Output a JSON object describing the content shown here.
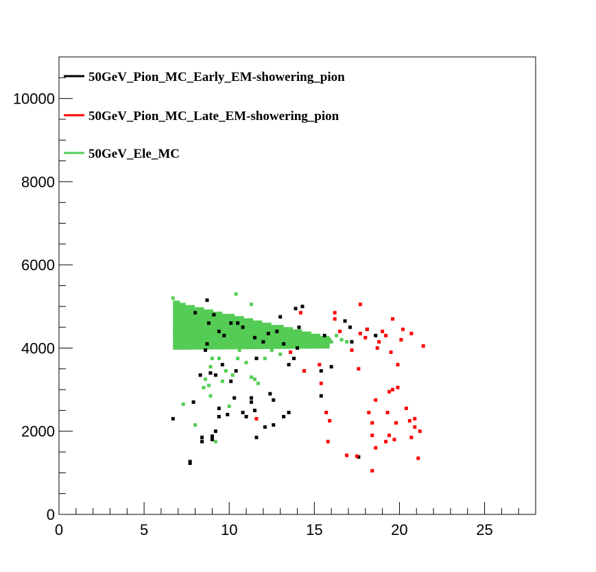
{
  "chart_data": {
    "type": "scatter",
    "title": "",
    "xlabel": "",
    "ylabel": "",
    "xlim": [
      0,
      28
    ],
    "ylim": [
      0,
      11000
    ],
    "x_ticks": [
      0,
      5,
      10,
      15,
      20,
      25
    ],
    "y_ticks": [
      0,
      2000,
      4000,
      6000,
      8000,
      10000
    ],
    "x_tick_labels": [
      "0",
      "5",
      "10",
      "15",
      "20",
      "25"
    ],
    "y_tick_labels": [
      "0",
      "2000",
      "4000",
      "6000",
      "8000",
      "10000"
    ],
    "grid": false,
    "legend_placement": "top-left",
    "series": [
      {
        "name": "50GeV_Pion_MC_Early_EM-showering_pion",
        "color": "#000000",
        "points": [
          [
            6.7,
            2300
          ],
          [
            7.7,
            1230
          ],
          [
            7.7,
            1270
          ],
          [
            7.9,
            2700
          ],
          [
            8.4,
            1850
          ],
          [
            8.4,
            1750
          ],
          [
            8.3,
            3350
          ],
          [
            8.6,
            3950
          ],
          [
            8.7,
            5150
          ],
          [
            8.9,
            3400
          ],
          [
            9.0,
            1800
          ],
          [
            9.0,
            1880
          ],
          [
            9.2,
            2000
          ],
          [
            9.4,
            2550
          ],
          [
            9.4,
            2350
          ],
          [
            9.2,
            3350
          ],
          [
            9.6,
            3600
          ],
          [
            9.9,
            2400
          ],
          [
            10.1,
            3200
          ],
          [
            10.4,
            3450
          ],
          [
            10.5,
            4600
          ],
          [
            10.1,
            4600
          ],
          [
            10.3,
            2800
          ],
          [
            10.8,
            2450
          ],
          [
            11.0,
            2350
          ],
          [
            11.3,
            2700
          ],
          [
            11.3,
            2800
          ],
          [
            11.6,
            1850
          ],
          [
            11.5,
            2500
          ],
          [
            11.6,
            3750
          ],
          [
            12.0,
            4150
          ],
          [
            12.1,
            2100
          ],
          [
            12.4,
            2900
          ],
          [
            12.6,
            2750
          ],
          [
            12.6,
            2150
          ],
          [
            12.8,
            4400
          ],
          [
            13.0,
            4750
          ],
          [
            13.2,
            2350
          ],
          [
            13.5,
            2450
          ],
          [
            13.5,
            3600
          ],
          [
            13.8,
            3750
          ],
          [
            13.9,
            4950
          ],
          [
            14.3,
            5000
          ],
          [
            14.1,
            4500
          ],
          [
            14.4,
            3450
          ],
          [
            15.4,
            3450
          ],
          [
            15.4,
            2850
          ],
          [
            15.6,
            4300
          ],
          [
            16.0,
            3550
          ],
          [
            16.8,
            4650
          ],
          [
            17.1,
            4500
          ],
          [
            17.2,
            4150
          ],
          [
            17.6,
            1380
          ],
          [
            18.1,
            4450
          ],
          [
            18.6,
            4300
          ],
          [
            8.0,
            4850
          ],
          [
            9.1,
            4800
          ],
          [
            9.4,
            4400
          ],
          [
            8.7,
            4100
          ],
          [
            13.2,
            4100
          ],
          [
            14.0,
            4000
          ],
          [
            8.8,
            4600
          ],
          [
            9.7,
            4300
          ],
          [
            10.8,
            4500
          ],
          [
            11.5,
            4250
          ],
          [
            12.3,
            4350
          ]
        ]
      },
      {
        "name": "50GeV_Pion_MC_Late_EM-showering_pion",
        "color": "#ff0000",
        "points": [
          [
            11.6,
            2300
          ],
          [
            13.6,
            3900
          ],
          [
            14.2,
            4850
          ],
          [
            14.4,
            3450
          ],
          [
            15.3,
            3600
          ],
          [
            15.4,
            3150
          ],
          [
            15.7,
            2450
          ],
          [
            15.8,
            1750
          ],
          [
            15.9,
            2250
          ],
          [
            16.2,
            4850
          ],
          [
            16.2,
            4700
          ],
          [
            16.5,
            4400
          ],
          [
            16.9,
            1420
          ],
          [
            17.2,
            3950
          ],
          [
            17.5,
            1400
          ],
          [
            17.6,
            3500
          ],
          [
            17.7,
            4350
          ],
          [
            17.7,
            5050
          ],
          [
            18.0,
            4250
          ],
          [
            18.1,
            4450
          ],
          [
            18.2,
            2450
          ],
          [
            18.4,
            2200
          ],
          [
            18.4,
            1900
          ],
          [
            18.4,
            1050
          ],
          [
            18.6,
            2750
          ],
          [
            18.6,
            1600
          ],
          [
            18.7,
            4000
          ],
          [
            19.0,
            4400
          ],
          [
            19.2,
            1750
          ],
          [
            19.3,
            2450
          ],
          [
            19.2,
            4300
          ],
          [
            19.4,
            2950
          ],
          [
            19.4,
            1900
          ],
          [
            19.6,
            4700
          ],
          [
            19.6,
            3000
          ],
          [
            19.7,
            1800
          ],
          [
            19.8,
            2200
          ],
          [
            19.9,
            3050
          ],
          [
            19.9,
            3600
          ],
          [
            20.1,
            4200
          ],
          [
            20.2,
            4450
          ],
          [
            20.4,
            2550
          ],
          [
            20.6,
            2250
          ],
          [
            20.7,
            4350
          ],
          [
            20.7,
            1850
          ],
          [
            20.9,
            2300
          ],
          [
            20.9,
            2100
          ],
          [
            21.1,
            1350
          ],
          [
            21.2,
            2000
          ],
          [
            21.4,
            4050
          ],
          [
            19.5,
            3900
          ],
          [
            18.8,
            4150
          ]
        ]
      },
      {
        "name": "50GeV_Ele_MC",
        "color": "#55cc55",
        "band": {
          "x_from": 6.8,
          "x_to": 15.8,
          "x_step": 0.18,
          "y_center_start": 4550,
          "y_center_end": 4150,
          "halfspread_start": 550,
          "halfspread_end": 120,
          "y_step": 55
        },
        "points": [
          [
            6.7,
            5200
          ],
          [
            6.8,
            4400
          ],
          [
            7.0,
            5100
          ],
          [
            7.3,
            2650
          ],
          [
            8.0,
            2150
          ],
          [
            8.5,
            3050
          ],
          [
            8.6,
            3250
          ],
          [
            8.8,
            3100
          ],
          [
            8.9,
            2850
          ],
          [
            8.9,
            3550
          ],
          [
            9.0,
            3750
          ],
          [
            9.2,
            1750
          ],
          [
            9.4,
            3750
          ],
          [
            9.6,
            3200
          ],
          [
            9.8,
            3450
          ],
          [
            10.0,
            2600
          ],
          [
            10.1,
            4050
          ],
          [
            10.2,
            3350
          ],
          [
            10.4,
            5300
          ],
          [
            10.5,
            3750
          ],
          [
            10.6,
            3950
          ],
          [
            11.0,
            3650
          ],
          [
            11.3,
            5050
          ],
          [
            11.3,
            3300
          ],
          [
            11.5,
            3250
          ],
          [
            11.7,
            3150
          ],
          [
            12.1,
            3750
          ],
          [
            12.5,
            3950
          ],
          [
            13.0,
            3850
          ],
          [
            14.0,
            4000
          ],
          [
            15.9,
            4200
          ],
          [
            16.3,
            4300
          ],
          [
            16.6,
            4200
          ],
          [
            16.9,
            4150
          ],
          [
            17.2,
            4150
          ],
          [
            16.0,
            4150
          ]
        ]
      }
    ]
  }
}
